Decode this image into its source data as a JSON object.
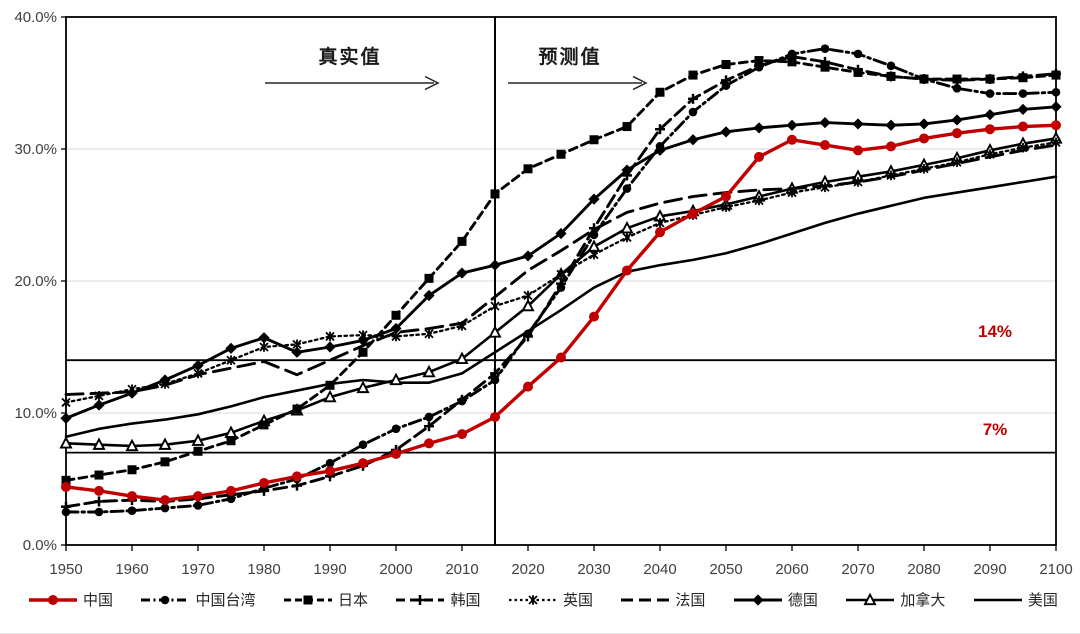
{
  "chart_data": {
    "type": "line",
    "xlabel": "",
    "ylabel": "",
    "xlim": [
      1950,
      2100
    ],
    "ylim": [
      0,
      40
    ],
    "grid": "horizontal-light",
    "legend_position": "bottom",
    "x_ticks": [
      1950,
      1960,
      1970,
      1980,
      1990,
      2000,
      2010,
      2020,
      2030,
      2040,
      2050,
      2060,
      2070,
      2080,
      2090,
      2100
    ],
    "y_ticks": [
      0,
      10,
      20,
      30,
      40
    ],
    "y_tick_labels": [
      "0.0%",
      "10.0%",
      "20.0%",
      "30.0%",
      "40.0%"
    ],
    "divider_x": 2015,
    "annotations": {
      "actual_label": "真实值",
      "forecast_label": "预测值"
    },
    "reference_lines": [
      {
        "value": 14,
        "label": "14%",
        "color": "#c00000"
      },
      {
        "value": 7,
        "label": "7%",
        "color": "#c00000"
      }
    ],
    "x": [
      1950,
      1955,
      1960,
      1965,
      1970,
      1975,
      1980,
      1985,
      1990,
      1995,
      2000,
      2005,
      2010,
      2015,
      2020,
      2025,
      2030,
      2035,
      2040,
      2045,
      2050,
      2055,
      2060,
      2065,
      2070,
      2075,
      2080,
      2085,
      2090,
      2095,
      2100
    ],
    "series": [
      {
        "key": "china",
        "name": "中国",
        "color": "#c00000",
        "line_style": "solid",
        "marker": "circle",
        "values": [
          4.4,
          4.1,
          3.7,
          3.4,
          3.7,
          4.1,
          4.7,
          5.2,
          5.6,
          6.2,
          6.9,
          7.7,
          8.4,
          9.7,
          12.0,
          14.2,
          17.3,
          20.8,
          23.7,
          25.1,
          26.4,
          29.4,
          30.7,
          30.3,
          29.9,
          30.2,
          30.8,
          31.2,
          31.5,
          31.7,
          31.8
        ]
      },
      {
        "key": "taiwan-china",
        "name": "中国台湾",
        "color": "#000000",
        "line_style": "dash-dot",
        "marker": "circle",
        "values": [
          2.5,
          2.5,
          2.6,
          2.8,
          3.0,
          3.5,
          4.3,
          5.0,
          6.2,
          7.6,
          8.8,
          9.7,
          10.9,
          12.5,
          16.0,
          19.5,
          23.5,
          27.0,
          30.2,
          32.8,
          34.8,
          36.2,
          37.2,
          37.6,
          37.2,
          36.3,
          35.3,
          34.6,
          34.2,
          34.2,
          34.3
        ]
      },
      {
        "key": "japan",
        "name": "日本",
        "color": "#000000",
        "line_style": "dash",
        "marker": "square",
        "values": [
          4.9,
          5.3,
          5.7,
          6.3,
          7.1,
          7.9,
          9.1,
          10.3,
          12.1,
          14.6,
          17.4,
          20.2,
          23.0,
          26.6,
          28.5,
          29.6,
          30.7,
          31.7,
          34.3,
          35.6,
          36.4,
          36.7,
          36.6,
          36.2,
          35.8,
          35.5,
          35.3,
          35.3,
          35.3,
          35.4,
          35.6
        ]
      },
      {
        "key": "korea",
        "name": "韩国",
        "color": "#000000",
        "line_style": "med-dash",
        "marker": "plus",
        "values": [
          2.9,
          3.3,
          3.4,
          3.3,
          3.5,
          3.8,
          4.1,
          4.5,
          5.2,
          6.0,
          7.2,
          9.0,
          11.0,
          13.0,
          15.8,
          19.8,
          24.0,
          28.0,
          31.5,
          33.8,
          35.2,
          36.3,
          37.0,
          36.6,
          36.0,
          35.5,
          35.3,
          35.2,
          35.3,
          35.5,
          35.7
        ]
      },
      {
        "key": "uk",
        "name": "英国",
        "color": "#000000",
        "line_style": "dot",
        "marker": "star6",
        "values": [
          10.8,
          11.3,
          11.8,
          12.2,
          13.0,
          14.0,
          15.0,
          15.2,
          15.8,
          15.9,
          15.8,
          16.0,
          16.6,
          18.1,
          18.9,
          20.5,
          22.0,
          23.3,
          24.4,
          25.0,
          25.6,
          26.1,
          26.7,
          27.1,
          27.5,
          28.0,
          28.5,
          29.0,
          29.6,
          30.1,
          30.5
        ]
      },
      {
        "key": "france",
        "name": "法国",
        "color": "#000000",
        "line_style": "long-dash",
        "marker": "none",
        "values": [
          11.4,
          11.5,
          11.6,
          12.1,
          12.9,
          13.4,
          13.9,
          12.9,
          14.0,
          15.1,
          16.1,
          16.4,
          16.8,
          18.8,
          20.8,
          22.3,
          23.9,
          25.2,
          25.9,
          26.4,
          26.7,
          26.9,
          27.0,
          27.2,
          27.5,
          27.9,
          28.4,
          28.9,
          29.4,
          29.9,
          30.3
        ]
      },
      {
        "key": "germany",
        "name": "德国",
        "color": "#000000",
        "line_style": "solid",
        "marker": "diamond",
        "values": [
          9.6,
          10.6,
          11.5,
          12.5,
          13.6,
          14.9,
          15.7,
          14.6,
          15.0,
          15.5,
          16.4,
          18.9,
          20.6,
          21.2,
          21.9,
          23.6,
          26.2,
          28.4,
          29.9,
          30.7,
          31.3,
          31.6,
          31.8,
          32.0,
          31.9,
          31.8,
          31.9,
          32.2,
          32.6,
          33.0,
          33.2
        ]
      },
      {
        "key": "canada",
        "name": "加拿大",
        "color": "#000000",
        "line_style": "solid",
        "marker": "triangle-open",
        "values": [
          7.7,
          7.6,
          7.5,
          7.6,
          7.9,
          8.5,
          9.4,
          10.2,
          11.2,
          11.9,
          12.5,
          13.1,
          14.1,
          16.1,
          18.1,
          20.5,
          22.6,
          24.0,
          24.9,
          25.3,
          25.8,
          26.4,
          27.0,
          27.5,
          27.9,
          28.3,
          28.8,
          29.3,
          29.9,
          30.4,
          30.8
        ]
      },
      {
        "key": "usa",
        "name": "美国",
        "color": "#000000",
        "line_style": "solid",
        "marker": "none",
        "values": [
          8.2,
          8.8,
          9.2,
          9.5,
          9.9,
          10.5,
          11.2,
          11.7,
          12.2,
          12.5,
          12.3,
          12.3,
          13.0,
          14.6,
          16.2,
          17.8,
          19.5,
          20.7,
          21.2,
          21.6,
          22.1,
          22.8,
          23.6,
          24.4,
          25.1,
          25.7,
          26.3,
          26.7,
          27.1,
          27.5,
          27.9
        ]
      }
    ]
  }
}
